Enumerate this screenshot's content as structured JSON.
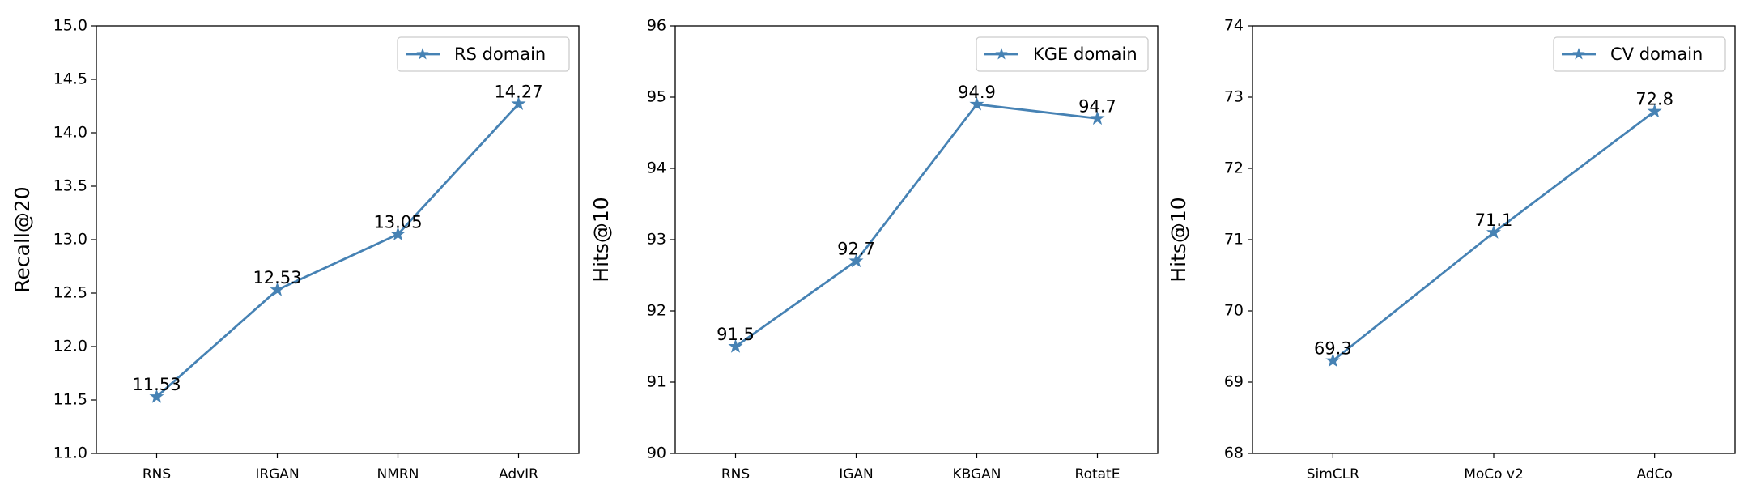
{
  "chart_data": [
    {
      "type": "line",
      "ylabel": "Recall@20",
      "categories": [
        "RNS",
        "IRGAN",
        "NMRN",
        "AdvIR"
      ],
      "series": [
        {
          "name": "RS domain",
          "color": "#4682b4",
          "marker": "star",
          "values": [
            11.53,
            12.53,
            13.05,
            14.27
          ]
        }
      ],
      "ylim": [
        11,
        15
      ],
      "yticks": [
        {
          "value": 11,
          "label": "11.0"
        },
        11.5,
        {
          "value": 12,
          "label": "12.0"
        },
        12.5,
        {
          "value": 13,
          "label": "13.0"
        },
        13.5,
        {
          "value": 14,
          "label": "14.0"
        },
        14.5,
        {
          "value": 15,
          "label": "15.0"
        }
      ],
      "legend": "upper right",
      "grid": false,
      "data_labels": true
    },
    {
      "type": "line",
      "ylabel": "Hits@10",
      "categories": [
        "RNS",
        "IGAN",
        "KBGAN",
        "RotatE"
      ],
      "series": [
        {
          "name": "KGE domain",
          "color": "#4682b4",
          "marker": "star",
          "values": [
            91.5,
            92.7,
            94.9,
            94.7
          ]
        }
      ],
      "ylim": [
        90,
        96
      ],
      "yticks": [
        90,
        91,
        92,
        93,
        94,
        95,
        96
      ],
      "legend": "upper right",
      "grid": false,
      "data_labels": true
    },
    {
      "type": "line",
      "ylabel": "Hits@10",
      "categories": [
        "SimCLR",
        "MoCo v2",
        "AdCo"
      ],
      "series": [
        {
          "name": "CV domain",
          "color": "#4682b4",
          "marker": "star",
          "values": [
            69.3,
            71.1,
            72.8
          ]
        }
      ],
      "ylim": [
        68,
        74
      ],
      "yticks": [
        68,
        69,
        70,
        71,
        72,
        73,
        74
      ],
      "legend": "upper right",
      "grid": false,
      "data_labels": true
    }
  ]
}
